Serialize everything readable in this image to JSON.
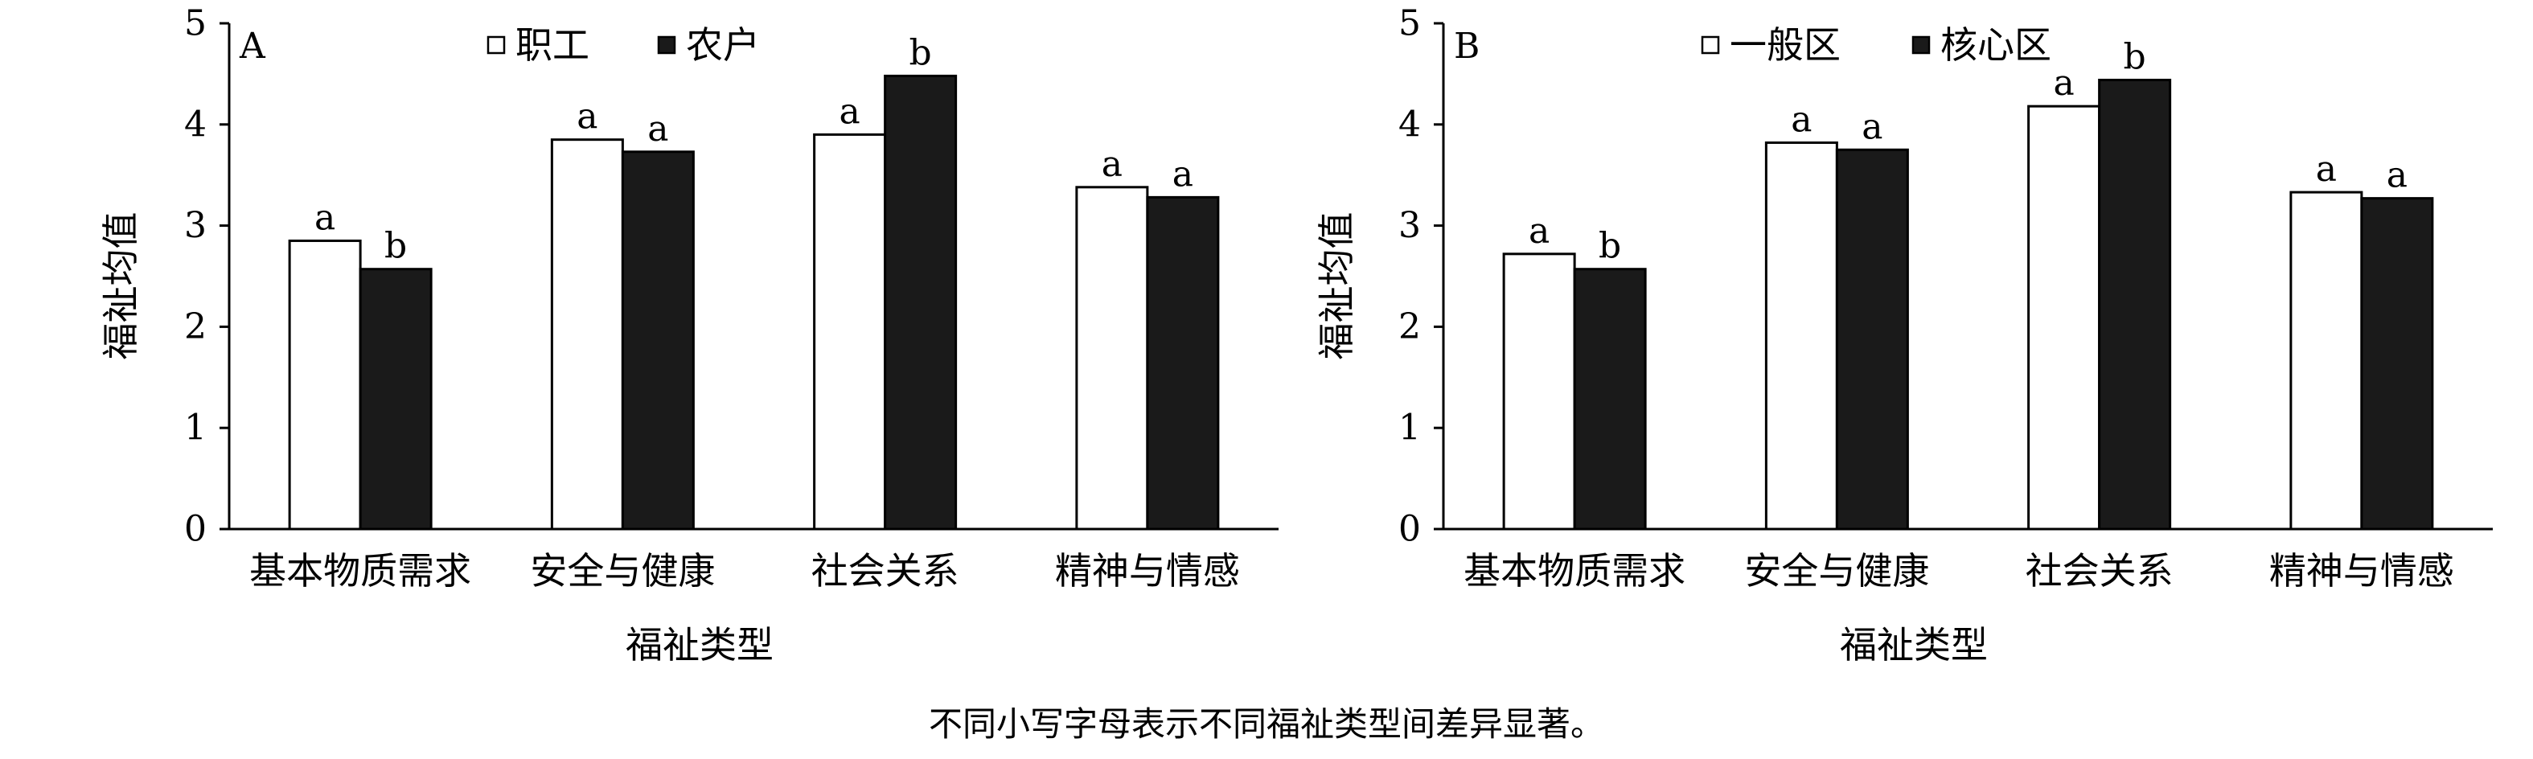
{
  "chart_data": [
    {
      "type": "bar",
      "panel_label": "A",
      "categories": [
        "基本物质需求",
        "安全与健康",
        "社会关系",
        "精神与情感"
      ],
      "series": [
        {
          "name": "职工",
          "values": [
            2.85,
            3.85,
            3.9,
            3.38
          ],
          "letters": [
            "a",
            "a",
            "a",
            "a"
          ]
        },
        {
          "name": "农户",
          "values": [
            2.57,
            3.73,
            4.48,
            3.28
          ],
          "letters": [
            "b",
            "a",
            "b",
            "a"
          ]
        }
      ],
      "xlabel": "福祉类型",
      "ylabel": "福祉均值",
      "ylim": [
        0,
        5
      ],
      "yticks": [
        "0",
        "1",
        "2",
        "3",
        "4",
        "5"
      ],
      "legend_placement": "top-left",
      "grid": false
    },
    {
      "type": "bar",
      "panel_label": "B",
      "categories": [
        "基本物质需求",
        "安全与健康",
        "社会关系",
        "精神与情感"
      ],
      "series": [
        {
          "name": "一般区",
          "values": [
            2.72,
            3.82,
            4.18,
            3.33
          ],
          "letters": [
            "a",
            "a",
            "a",
            "a"
          ]
        },
        {
          "name": "核心区",
          "values": [
            2.57,
            3.75,
            4.44,
            3.27
          ],
          "letters": [
            "b",
            "a",
            "b",
            "a"
          ]
        }
      ],
      "xlabel": "福祉类型",
      "ylabel": "福祉均值",
      "ylim": [
        0,
        5
      ],
      "yticks": [
        "0",
        "1",
        "2",
        "3",
        "4",
        "5"
      ],
      "legend_placement": "top-left",
      "grid": false
    }
  ],
  "colors": {
    "series_1": "#ffffff",
    "series_2": "#1a1a1a",
    "stroke": "#000000"
  },
  "footnote": "不同小写字母表示不同福祉类型间差异显著。"
}
